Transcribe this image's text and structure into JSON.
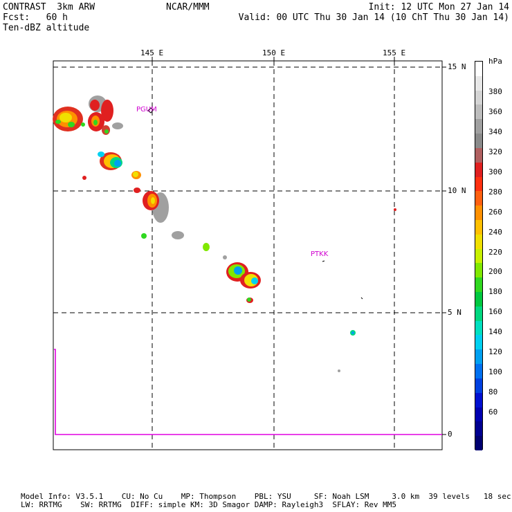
{
  "header": {
    "left_line1": "CONTRAST  3km ARW",
    "left_line2": "Fcst:   60 h",
    "left_line3": "Ten-dBZ altitude",
    "center": "NCAR/MMM",
    "init": "Init: 12 UTC Mon 27 Jan 14",
    "valid": "Valid: 00 UTC Thu 30 Jan 14 (10 ChT Thu 30 Jan 14)"
  },
  "map": {
    "lon_labels": [
      "145 E",
      "150 E",
      "155 E"
    ],
    "lat_labels": [
      "15 N",
      "10 N",
      "5 N",
      "0"
    ],
    "stations": [
      {
        "id": "station-pgum",
        "label": "PGUM"
      },
      {
        "id": "station-ptkk",
        "label": "PTKK"
      }
    ]
  },
  "colorbar": {
    "unit": "hPa",
    "labels": [
      "380",
      "360",
      "340",
      "320",
      "300",
      "280",
      "260",
      "240",
      "220",
      "200",
      "180",
      "160",
      "140",
      "120",
      "100",
      "80",
      "60"
    ],
    "colors": [
      "#ffffff",
      "#e8e8e8",
      "#d4d4d4",
      "#bdbdbd",
      "#a0a0a0",
      "#8a8a8a",
      "#b06060",
      "#e02020",
      "#ff3010",
      "#ff6010",
      "#ff9000",
      "#ffc000",
      "#f0e000",
      "#c8f000",
      "#80e800",
      "#30d820",
      "#00c840",
      "#00d880",
      "#00e0c0",
      "#00d0f0",
      "#00a0f0",
      "#0070f0",
      "#0040e0",
      "#0010d0",
      "#0000b0",
      "#000090",
      "#000070"
    ]
  },
  "footer": {
    "line1": "Model Info: V3.5.1    CU: No Cu    MP: Thompson    PBL: YSU     SF: Noah LSM     3.0 km  39 levels   18 sec",
    "line2": "LW: RRTMG    SW: RRTMG  DIFF: simple KM: 3D Smagor DAMP: Rayleigh3  SFLAY: Rev MM5"
  }
}
